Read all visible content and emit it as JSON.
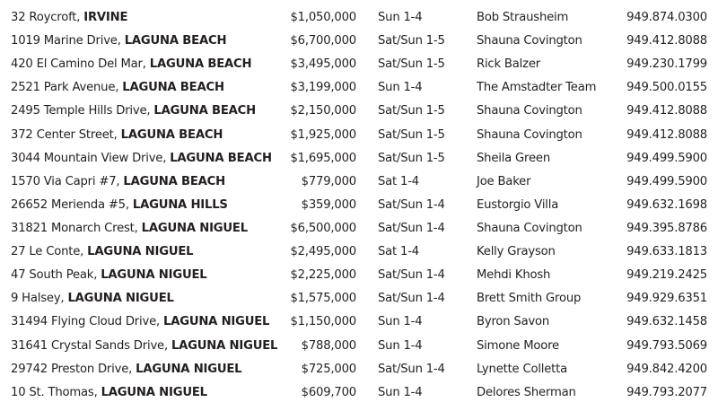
{
  "listings": [
    {
      "street": "32 Roycroft,",
      "city": "IRVINE",
      "price": "$1,050,000",
      "hours": "Sun 1-4",
      "agent": "Bob Strausheim",
      "phone": "949.874.0300"
    },
    {
      "street": "1019 Marine Drive,",
      "city": "LAGUNA BEACH",
      "price": "$6,700,000",
      "hours": "Sat/Sun 1-5",
      "agent": "Shauna Covington",
      "phone": "949.412.8088"
    },
    {
      "street": "420 El Camino Del Mar,",
      "city": "LAGUNA BEACH",
      "price": "$3,495,000",
      "hours": "Sat/Sun 1-5",
      "agent": "Rick Balzer",
      "phone": "949.230.1799"
    },
    {
      "street": "2521 Park Avenue,",
      "city": "LAGUNA BEACH",
      "price": "$3,199,000",
      "hours": "Sun 1-4",
      "agent": "The Amstadter Team",
      "phone": "949.500.0155"
    },
    {
      "street": "2495 Temple Hills Drive,",
      "city": "LAGUNA BEACH",
      "price": "$2,150,000",
      "hours": "Sat/Sun 1-5",
      "agent": "Shauna Covington",
      "phone": "949.412.8088"
    },
    {
      "street": "372 Center Street,",
      "city": "LAGUNA BEACH",
      "price": "$1,925,000",
      "hours": "Sat/Sun 1-5",
      "agent": "Shauna Covington",
      "phone": "949.412.8088"
    },
    {
      "street": "3044 Mountain View Drive,",
      "city": "LAGUNA BEACH",
      "price": "$1,695,000",
      "hours": "Sat/Sun 1-5",
      "agent": "Sheila Green",
      "phone": "949.499.5900"
    },
    {
      "street": "1570 Via Capri #7,",
      "city": "LAGUNA BEACH",
      "price": "$779,000",
      "hours": "Sat 1-4",
      "agent": "Joe Baker",
      "phone": "949.499.5900"
    },
    {
      "street": "26652 Merienda #5,",
      "city": "LAGUNA HILLS",
      "price": "$359,000",
      "hours": "Sat/Sun 1-4",
      "agent": "Eustorgio Villa",
      "phone": "949.632.1698"
    },
    {
      "street": "31821 Monarch Crest,",
      "city": "LAGUNA NIGUEL",
      "price": "$6,500,000",
      "hours": "Sat/Sun 1-4",
      "agent": "Shauna Covington",
      "phone": "949.395.8786"
    },
    {
      "street": "27 Le Conte,",
      "city": "LAGUNA NIGUEL",
      "price": "$2,495,000",
      "hours": "Sat 1-4",
      "agent": "Kelly Grayson",
      "phone": "949.633.1813"
    },
    {
      "street": "47 South Peak,",
      "city": "LAGUNA NIGUEL",
      "price": "$2,225,000",
      "hours": "Sat/Sun 1-4",
      "agent": "Mehdi Khosh",
      "phone": "949.219.2425"
    },
    {
      "street": "9 Halsey,",
      "city": "LAGUNA NIGUEL",
      "price": "$1,575,000",
      "hours": "Sat/Sun 1-4",
      "agent": "Brett Smith Group",
      "phone": "949.929.6351"
    },
    {
      "street": "31494 Flying Cloud Drive,",
      "city": "LAGUNA NIGUEL",
      "price": "$1,150,000",
      "hours": "Sun 1-4",
      "agent": "Byron Savon",
      "phone": "949.632.1458"
    },
    {
      "street": "31641 Crystal Sands Drive,",
      "city": "LAGUNA NIGUEL",
      "price": "$788,000",
      "hours": "Sun 1-4",
      "agent": "Simone Moore",
      "phone": "949.793.5069"
    },
    {
      "street": "29742 Preston Drive,",
      "city": "LAGUNA NIGUEL",
      "price": "$725,000",
      "hours": "Sat/Sun 1-4",
      "agent": "Lynette Colletta",
      "phone": "949.842.4200"
    },
    {
      "street": "10 St. Thomas,",
      "city": "LAGUNA NIGUEL",
      "price": "$609,700",
      "hours": "Sun 1-4",
      "agent": "Delores Sherman",
      "phone": "949.793.2077"
    }
  ]
}
